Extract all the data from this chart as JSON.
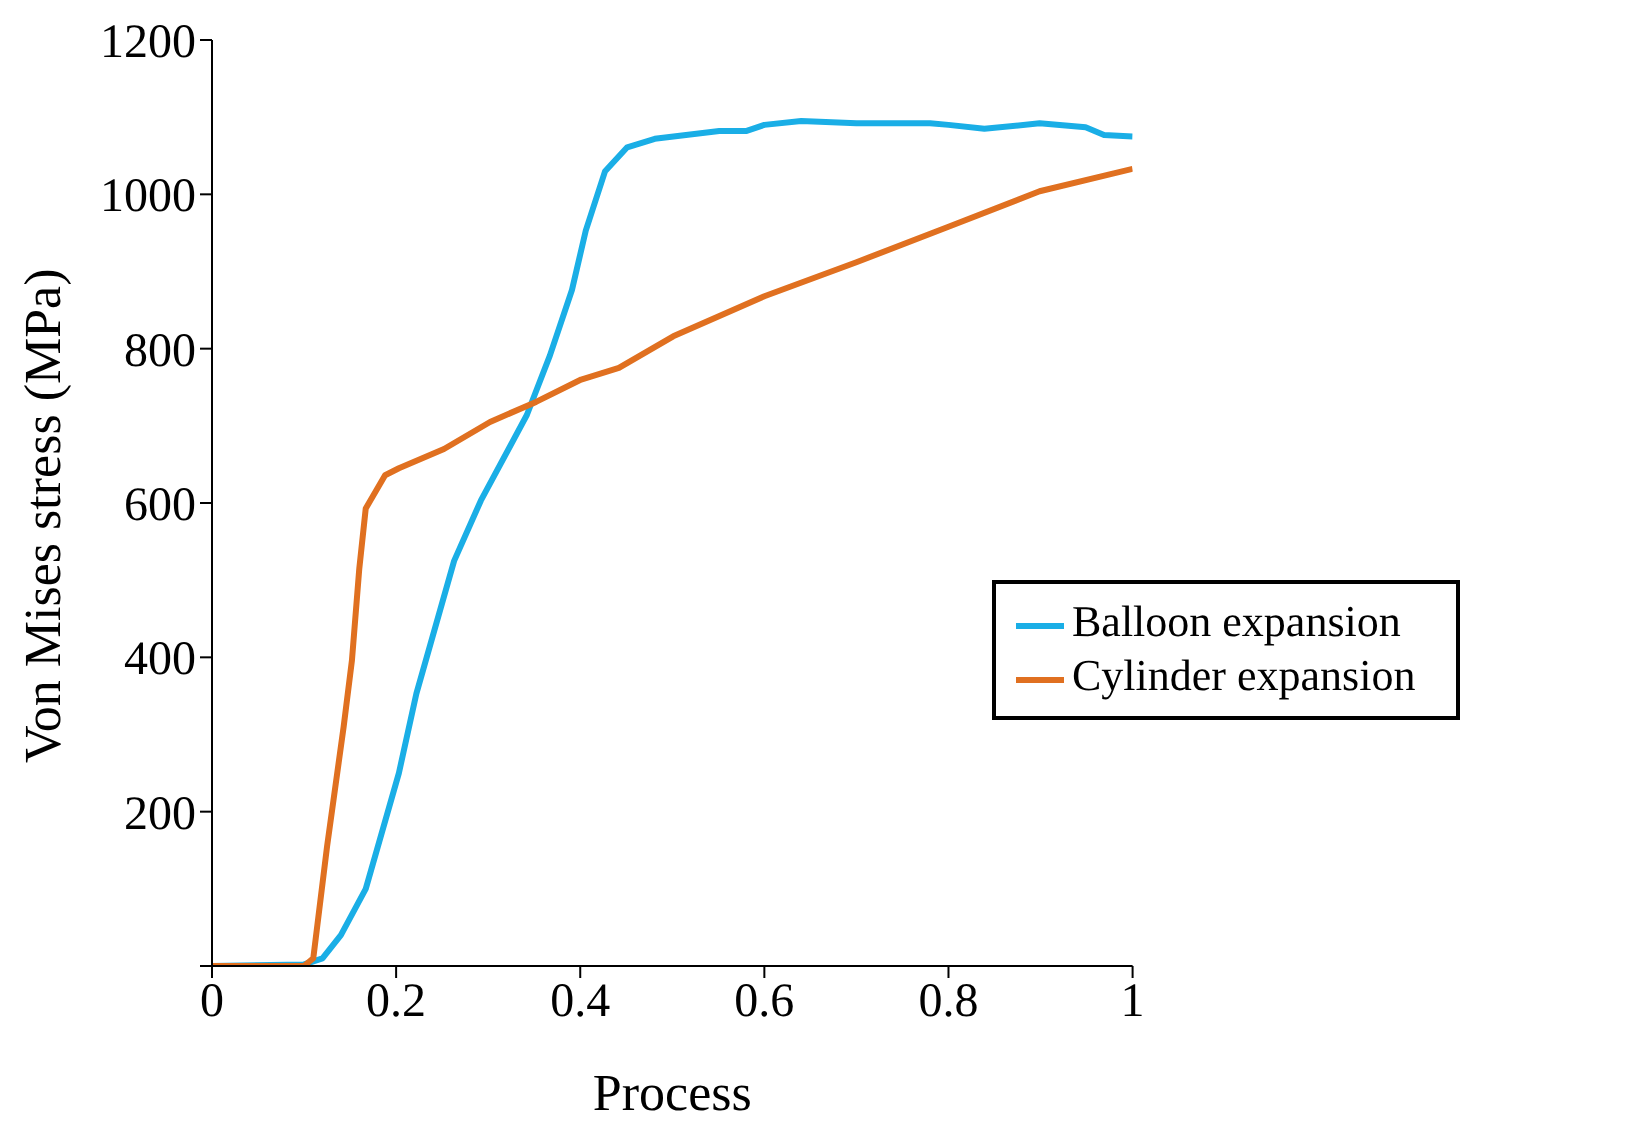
{
  "chart_data": {
    "type": "line",
    "xlabel": "Process",
    "ylabel": "Von Mises stress (MPa)",
    "xlim": [
      0,
      1
    ],
    "ylim": [
      0,
      1200
    ],
    "xticks": [
      0,
      0.2,
      0.4,
      0.6,
      0.8,
      1
    ],
    "yticks": [
      {
        "value": 0,
        "label": null
      },
      200,
      400,
      600,
      800,
      1000,
      1200
    ],
    "legend": "right",
    "marker": "none",
    "line_style": "solid",
    "series": [
      {
        "name": "Balloon expansion",
        "color": "#1aaee6",
        "x": [
          0,
          0.1,
          0.12,
          0.14,
          0.167,
          0.203,
          0.222,
          0.263,
          0.292,
          0.342,
          0.367,
          0.391,
          0.406,
          0.427,
          0.451,
          0.481,
          0.551,
          0.58,
          0.6,
          0.64,
          0.7,
          0.78,
          0.8,
          0.839,
          0.899,
          0.949,
          0.969,
          1.0
        ],
        "values": [
          0,
          2,
          10,
          40,
          100,
          250,
          353,
          525,
          603,
          714,
          791,
          876,
          953,
          1030,
          1061,
          1072,
          1082,
          1082,
          1090,
          1095,
          1092,
          1092,
          1090,
          1085,
          1092,
          1087,
          1077,
          1075
        ]
      },
      {
        "name": "Cylinder expansion",
        "color": "#e07020",
        "x": [
          0,
          0.1,
          0.11,
          0.125,
          0.143,
          0.152,
          0.16,
          0.167,
          0.188,
          0.203,
          0.252,
          0.302,
          0.352,
          0.401,
          0.442,
          0.501,
          0.6,
          0.7,
          0.8,
          0.899,
          1.0
        ],
        "values": [
          0,
          0,
          10,
          155,
          310,
          396,
          515,
          593,
          636,
          645,
          670,
          705,
          731,
          760,
          775,
          816,
          868,
          912,
          958,
          1004,
          1033
        ]
      }
    ]
  }
}
